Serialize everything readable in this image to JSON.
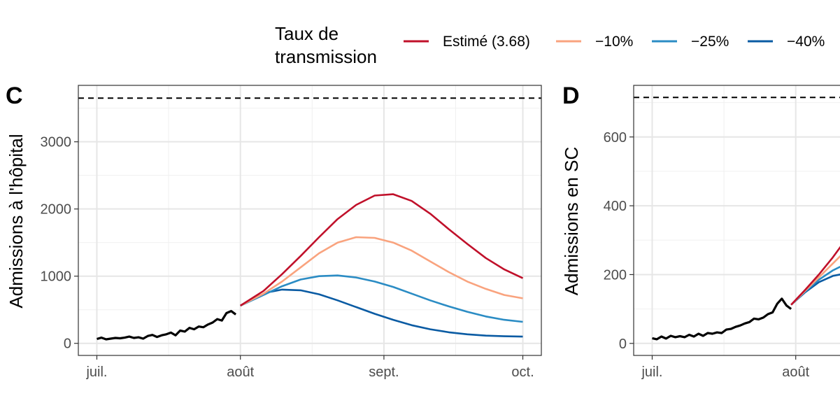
{
  "legend": {
    "title_line1": "Taux de",
    "title_line2": "transmission",
    "placement": "top",
    "items": [
      {
        "label": "Estimé (3.68)",
        "color": "#c0102a"
      },
      {
        "label": "−10%",
        "color": "#f9a37e"
      },
      {
        "label": "−25%",
        "color": "#2b8cc4"
      },
      {
        "label": "−40%",
        "color": "#0a5ba3"
      }
    ]
  },
  "chart_data": [
    {
      "type": "line",
      "panel_label": "C",
      "ylabel": "Admissions à l'hôpital",
      "xlabel": "",
      "x_unit": "days from 1 July",
      "x_ticks": [
        {
          "label": "juil.",
          "value": 0
        },
        {
          "label": "août",
          "value": 31
        },
        {
          "label": "sept.",
          "value": 62
        },
        {
          "label": "oct.",
          "value": 92
        }
      ],
      "y_ticks": [
        0,
        1000,
        2000,
        3000
      ],
      "xlim": [
        -4,
        96
      ],
      "ylim": [
        -180,
        3840
      ],
      "grid": true,
      "threshold": 3650,
      "observed": {
        "color": "#000000",
        "x": [
          0,
          1,
          2,
          3,
          4,
          5,
          6,
          7,
          8,
          9,
          10,
          11,
          12,
          13,
          14,
          15,
          16,
          17,
          18,
          19,
          20,
          21,
          22,
          23,
          24,
          25,
          26,
          27,
          28,
          29,
          30
        ],
        "y": [
          65,
          85,
          60,
          70,
          80,
          75,
          85,
          100,
          80,
          90,
          70,
          110,
          125,
          95,
          120,
          135,
          160,
          120,
          190,
          175,
          230,
          210,
          250,
          240,
          280,
          310,
          360,
          340,
          450,
          480,
          430
        ]
      },
      "series": [
        {
          "name": "Estimé (3.68)",
          "color": "#c0102a",
          "x": [
            31,
            36,
            40,
            44,
            48,
            52,
            56,
            60,
            64,
            68,
            72,
            76,
            80,
            84,
            88,
            92
          ],
          "y": [
            560,
            780,
            1030,
            1300,
            1580,
            1850,
            2060,
            2200,
            2220,
            2120,
            1930,
            1700,
            1480,
            1270,
            1100,
            970
          ]
        },
        {
          "name": "−10%",
          "color": "#f9a37e",
          "x": [
            31,
            36,
            40,
            44,
            48,
            52,
            56,
            60,
            64,
            68,
            72,
            76,
            80,
            84,
            88,
            92
          ],
          "y": [
            560,
            740,
            920,
            1130,
            1340,
            1500,
            1580,
            1570,
            1500,
            1380,
            1220,
            1060,
            920,
            810,
            720,
            670
          ]
        },
        {
          "name": "−25%",
          "color": "#2b8cc4",
          "x": [
            31,
            36,
            40,
            44,
            48,
            52,
            56,
            60,
            64,
            68,
            72,
            76,
            80,
            84,
            88,
            92
          ],
          "y": [
            560,
            720,
            850,
            950,
            1000,
            1010,
            980,
            920,
            840,
            740,
            640,
            550,
            470,
            400,
            350,
            320
          ]
        },
        {
          "name": "−40%",
          "color": "#0a5ba3",
          "x": [
            31,
            34,
            37,
            40,
            44,
            48,
            52,
            56,
            60,
            64,
            68,
            72,
            76,
            80,
            84,
            88,
            92
          ],
          "y": [
            560,
            680,
            760,
            800,
            790,
            730,
            640,
            540,
            440,
            350,
            270,
            210,
            165,
            135,
            115,
            105,
            100
          ]
        }
      ]
    },
    {
      "type": "line",
      "panel_label": "D",
      "ylabel": "Admissions en SC",
      "xlabel": "",
      "x_unit": "days from 1 July",
      "x_ticks": [
        {
          "label": "juil.",
          "value": 0
        },
        {
          "label": "août",
          "value": 31
        }
      ],
      "y_ticks": [
        0,
        200,
        400,
        600
      ],
      "xlim": [
        -4,
        96
      ],
      "ylim": [
        -35,
        750
      ],
      "grid": true,
      "threshold": 715,
      "observed": {
        "color": "#000000",
        "x": [
          0,
          1,
          2,
          3,
          4,
          5,
          6,
          7,
          8,
          9,
          10,
          11,
          12,
          13,
          14,
          15,
          16,
          17,
          18,
          19,
          20,
          21,
          22,
          23,
          24,
          25,
          26,
          27,
          28,
          29,
          30
        ],
        "y": [
          15,
          12,
          20,
          14,
          22,
          18,
          21,
          18,
          25,
          20,
          28,
          22,
          30,
          28,
          32,
          30,
          40,
          42,
          48,
          52,
          58,
          62,
          72,
          70,
          75,
          85,
          90,
          115,
          130,
          110,
          100
        ]
      },
      "series": [
        {
          "name": "Estimé (3.68)",
          "color": "#c0102a",
          "x": [
            30,
            33,
            36,
            39,
            42
          ],
          "y": [
            112,
            155,
            200,
            250,
            305
          ]
        },
        {
          "name": "−10%",
          "color": "#f9a37e",
          "x": [
            30,
            33,
            36,
            39,
            42
          ],
          "y": [
            112,
            152,
            192,
            232,
            272
          ]
        },
        {
          "name": "−25%",
          "color": "#2b8cc4",
          "x": [
            30,
            33,
            36,
            39,
            42
          ],
          "y": [
            112,
            150,
            185,
            212,
            232
          ]
        },
        {
          "name": "−40%",
          "color": "#0a5ba3",
          "x": [
            30,
            33,
            36,
            39,
            42
          ],
          "y": [
            112,
            148,
            178,
            196,
            204
          ]
        }
      ]
    }
  ]
}
